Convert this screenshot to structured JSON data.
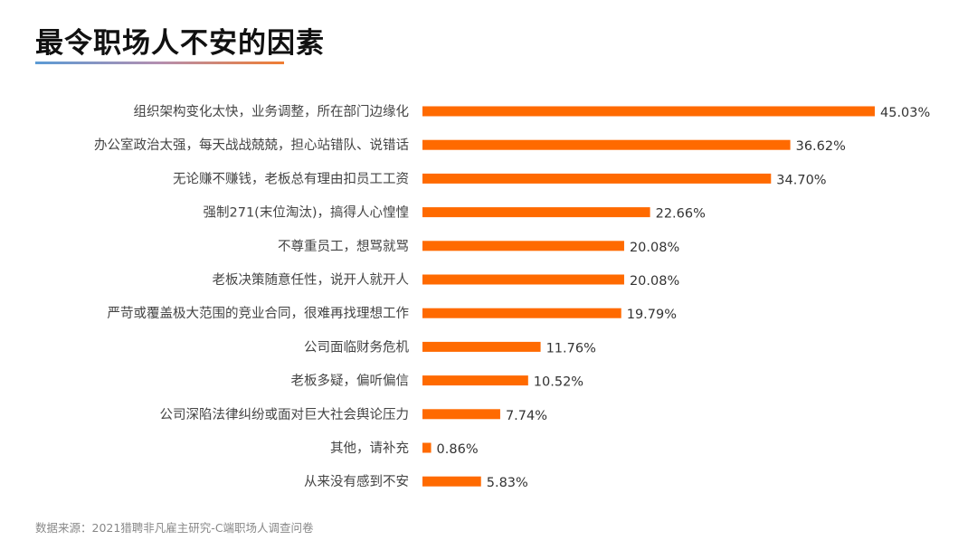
{
  "title": "最令职场人不安的因素",
  "source": "数据来源：2021猎聘非凡雇主研究-C端职场人调查问卷",
  "chart_data": {
    "type": "bar",
    "orientation": "horizontal",
    "title": "最令职场人不安的因素",
    "xlabel": "",
    "ylabel": "",
    "unit": "%",
    "xlim": [
      0,
      45.03
    ],
    "grid": false,
    "bar_color": "#ff6a00",
    "categories": [
      "组织架构变化太快，业务调整，所在部门边缘化",
      "办公室政治太强，每天战战兢兢，担心站错队、说错话",
      "无论赚不赚钱，老板总有理由扣员工工资",
      "强制271(末位淘汰)，搞得人心惶惶",
      "不尊重员工，想骂就骂",
      "老板决策随意任性，说开人就开人",
      "严苛或覆盖极大范围的竞业合同，很难再找理想工作",
      "公司面临财务危机",
      "老板多疑，偏听偏信",
      "公司深陷法律纠纷或面对巨大社会舆论压力",
      "其他，请补充",
      "从来没有感到不安"
    ],
    "values": [
      45.03,
      36.62,
      34.7,
      22.66,
      20.08,
      20.08,
      19.79,
      11.76,
      10.52,
      7.74,
      0.86,
      5.83
    ],
    "labels": [
      "45.03%",
      "36.62%",
      "34.70%",
      "22.66%",
      "20.08%",
      "20.08%",
      "19.79%",
      "11.76%",
      "10.52%",
      "7.74%",
      "0.86%",
      "5.83%"
    ]
  }
}
